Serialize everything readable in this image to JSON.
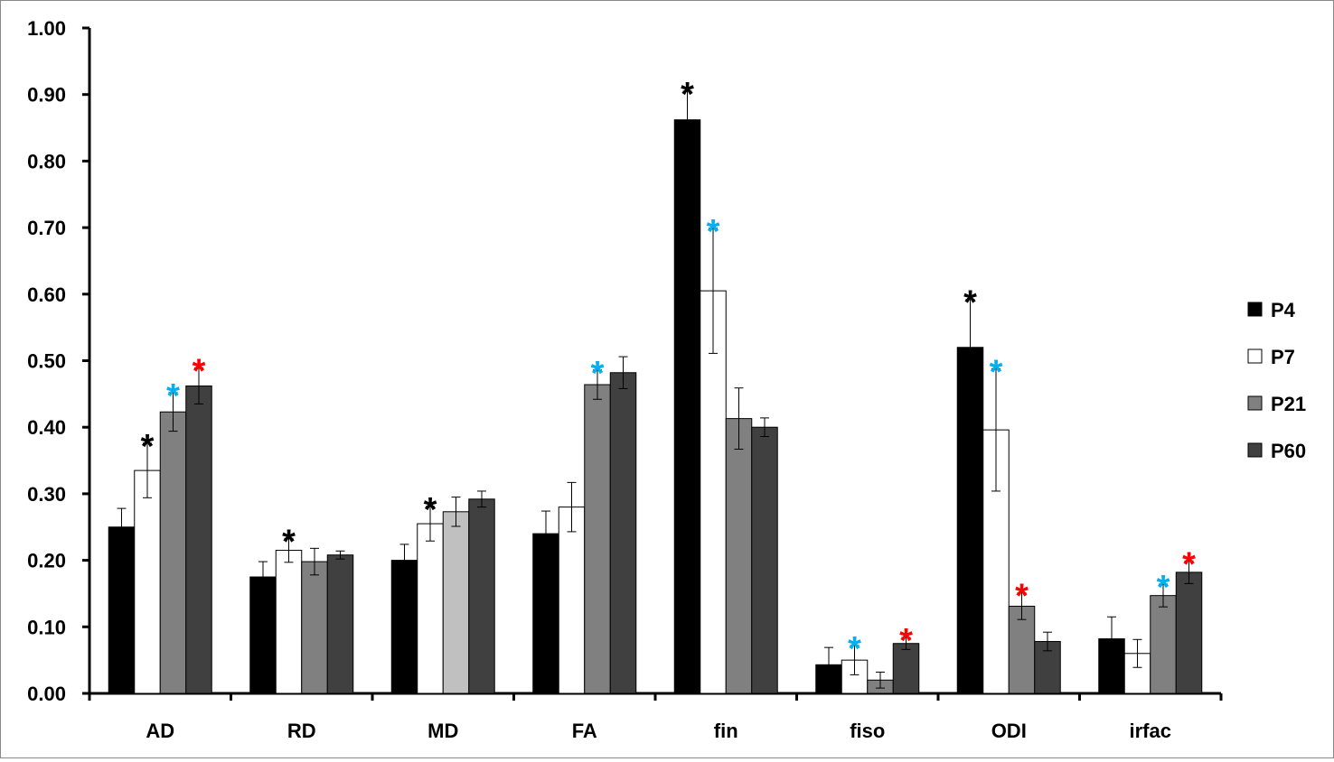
{
  "chart_data": {
    "type": "bar",
    "title": "",
    "xlabel": "",
    "ylabel": "",
    "ylim": [
      0,
      1.0
    ],
    "y_ticks": [
      "0.00",
      "0.10",
      "0.20",
      "0.30",
      "0.40",
      "0.50",
      "0.60",
      "0.70",
      "0.80",
      "0.90",
      "1.00"
    ],
    "grid": false,
    "legend_position": "right",
    "categories": [
      "AD",
      "RD",
      "MD",
      "FA",
      "fin",
      "fiso",
      "ODI",
      "irfac"
    ],
    "series": [
      {
        "name": "P4",
        "color": "#000000",
        "values": [
          0.25,
          0.175,
          0.2,
          0.24,
          0.862,
          0.043,
          0.52,
          0.082
        ],
        "errors": [
          0.028,
          0.023,
          0.024,
          0.034,
          0.043,
          0.026,
          0.072,
          0.033
        ]
      },
      {
        "name": "P7",
        "color": "#ffffff",
        "values": [
          0.335,
          0.215,
          0.255,
          0.28,
          0.605,
          0.05,
          0.396,
          0.06
        ],
        "errors": [
          0.041,
          0.018,
          0.026,
          0.037,
          0.094,
          0.022,
          0.092,
          0.021
        ]
      },
      {
        "name": "P21",
        "color": "#808080",
        "values": [
          0.423,
          0.198,
          0.273,
          0.464,
          0.413,
          0.02,
          0.131,
          0.147
        ],
        "errors": [
          0.029,
          0.02,
          0.022,
          0.022,
          0.046,
          0.012,
          0.02,
          0.017
        ]
      },
      {
        "name": "P60",
        "color": "#404040",
        "values": [
          0.462,
          0.208,
          0.292,
          0.482,
          0.4,
          0.075,
          0.078,
          0.182
        ],
        "errors": [
          0.027,
          0.006,
          0.012,
          0.024,
          0.014,
          0.009,
          0.014,
          0.017
        ]
      }
    ],
    "special_bar_colors": [
      {
        "category": "MD",
        "series": "P21",
        "color": "#c0c0c0"
      }
    ],
    "annotations": [
      {
        "category": "AD",
        "series": "P7",
        "text": "*",
        "color": "#000000"
      },
      {
        "category": "AD",
        "series": "P21",
        "text": "*",
        "color": "#00b0f0"
      },
      {
        "category": "AD",
        "series": "P60",
        "text": "*",
        "color": "#ff0000"
      },
      {
        "category": "RD",
        "series": "P7",
        "text": "*",
        "color": "#000000"
      },
      {
        "category": "MD",
        "series": "P7",
        "text": "*",
        "color": "#000000"
      },
      {
        "category": "FA",
        "series": "P21",
        "text": "*",
        "color": "#00b0f0"
      },
      {
        "category": "fin",
        "series": "P4",
        "text": "*",
        "color": "#000000"
      },
      {
        "category": "fin",
        "series": "P7",
        "text": "*",
        "color": "#00b0f0"
      },
      {
        "category": "fiso",
        "series": "P7",
        "text": "*",
        "color": "#00b0f0"
      },
      {
        "category": "fiso",
        "series": "P60",
        "text": "*",
        "color": "#ff0000"
      },
      {
        "category": "ODI",
        "series": "P4",
        "text": "*",
        "color": "#000000"
      },
      {
        "category": "ODI",
        "series": "P7",
        "text": "*",
        "color": "#00b0f0"
      },
      {
        "category": "ODI",
        "series": "P21",
        "text": "*",
        "color": "#ff0000"
      },
      {
        "category": "irfac",
        "series": "P21",
        "text": "*",
        "color": "#00b0f0"
      },
      {
        "category": "irfac",
        "series": "P60",
        "text": "*",
        "color": "#ff0000"
      }
    ]
  }
}
